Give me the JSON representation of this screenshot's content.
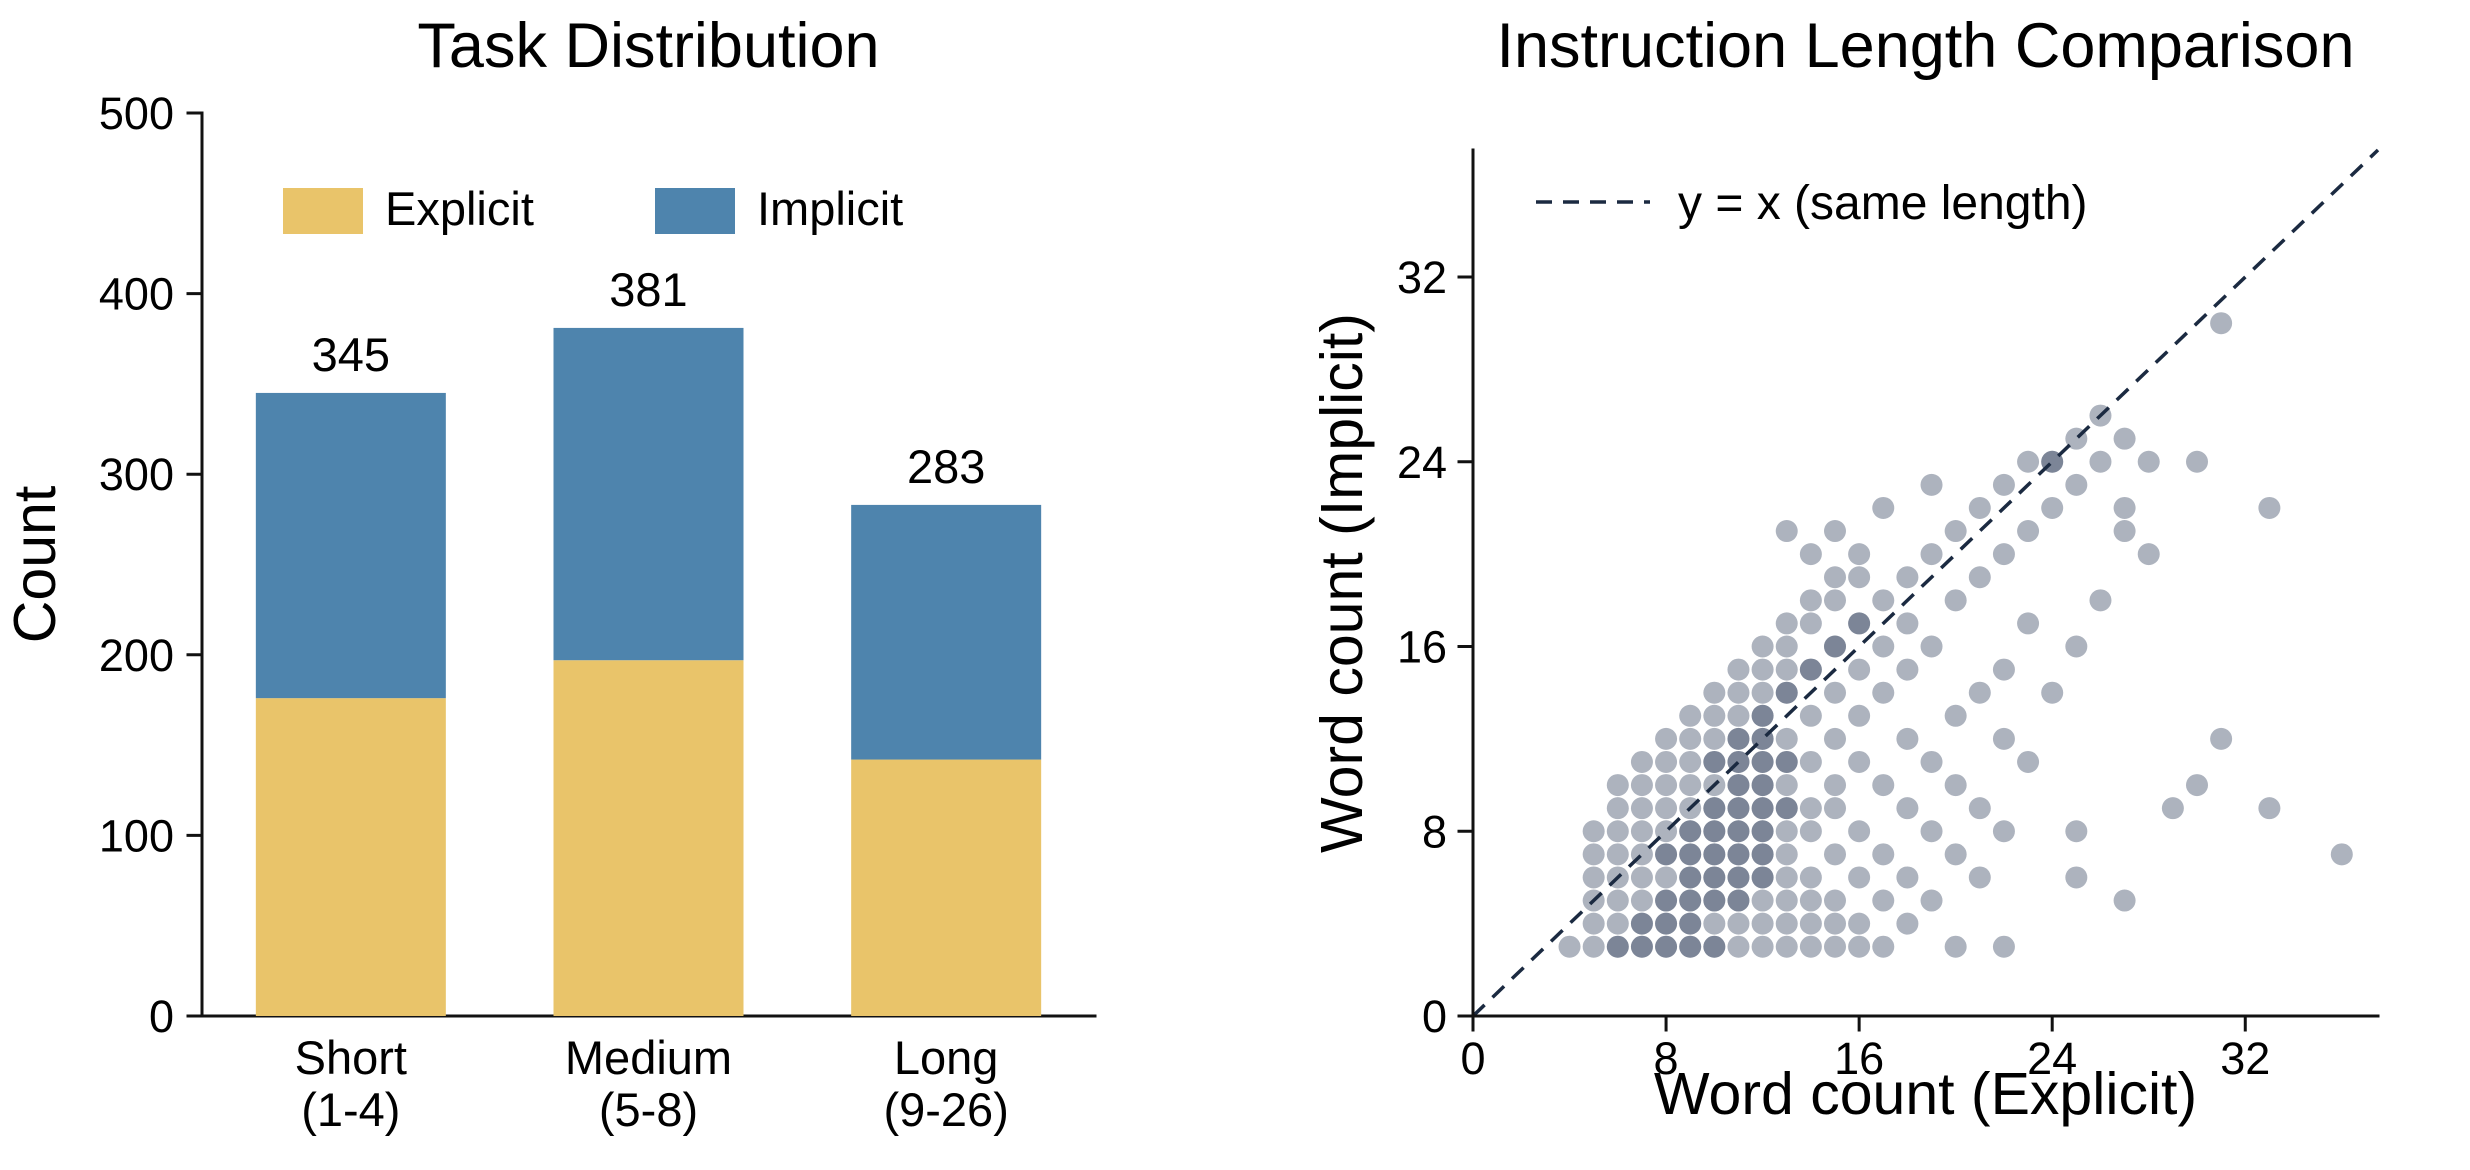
{
  "figure": {
    "background": "#ffffff"
  },
  "chart_data": [
    {
      "type": "bar",
      "stacked": true,
      "title": "Task Distribution",
      "ylabel": "Count",
      "ylim": [
        0,
        500
      ],
      "yticks": [
        0,
        100,
        200,
        300,
        400,
        500
      ],
      "categories": [
        [
          "Short",
          "(1-4)"
        ],
        [
          "Medium",
          "(5-8)"
        ],
        [
          "Long",
          "(9-26)"
        ]
      ],
      "series": [
        {
          "name": "Explicit",
          "color": "#e9c46a",
          "values": [
            176,
            197,
            142
          ]
        },
        {
          "name": "Implicit",
          "color": "#4e84ad",
          "values": [
            169,
            184,
            141
          ]
        }
      ],
      "totals": [
        345,
        381,
        283
      ],
      "legend": [
        "Explicit",
        "Implicit"
      ],
      "legend_position": "upper-inside",
      "grid": false
    },
    {
      "type": "scatter",
      "title": "Instruction Length Comparison",
      "xlabel": "Word count (Explicit)",
      "ylabel": "Word count (Implicit)",
      "xlim": [
        0,
        37.5
      ],
      "ylim": [
        0,
        37.5
      ],
      "xticks": [
        0,
        8,
        16,
        24,
        32
      ],
      "yticks": [
        0,
        8,
        16,
        24,
        32
      ],
      "grid": false,
      "point_color": "#33415c",
      "point_opacity": 0.4,
      "point_radius_px": 11,
      "reference_line": {
        "label": "y = x (same length)",
        "from": [
          0,
          0
        ],
        "to": [
          37.5,
          37.5
        ],
        "style": "dashed",
        "color": "#1b2a41"
      },
      "points": [
        [
          4,
          3
        ],
        [
          5,
          3
        ],
        [
          6,
          3
        ],
        [
          6,
          3
        ],
        [
          7,
          3
        ],
        [
          7,
          3
        ],
        [
          8,
          3
        ],
        [
          8,
          3
        ],
        [
          9,
          3
        ],
        [
          9,
          3
        ],
        [
          10,
          3
        ],
        [
          10,
          3
        ],
        [
          11,
          3
        ],
        [
          12,
          3
        ],
        [
          13,
          3
        ],
        [
          14,
          3
        ],
        [
          15,
          3
        ],
        [
          16,
          3
        ],
        [
          17,
          3
        ],
        [
          20,
          3
        ],
        [
          22,
          3
        ],
        [
          5,
          4
        ],
        [
          6,
          4
        ],
        [
          7,
          4
        ],
        [
          7,
          4
        ],
        [
          8,
          4
        ],
        [
          8,
          4
        ],
        [
          9,
          4
        ],
        [
          9,
          4
        ],
        [
          10,
          4
        ],
        [
          11,
          4
        ],
        [
          12,
          4
        ],
        [
          13,
          4
        ],
        [
          14,
          4
        ],
        [
          15,
          4
        ],
        [
          16,
          4
        ],
        [
          18,
          4
        ],
        [
          5,
          5
        ],
        [
          6,
          5
        ],
        [
          7,
          5
        ],
        [
          8,
          5
        ],
        [
          8,
          5
        ],
        [
          9,
          5
        ],
        [
          9,
          5
        ],
        [
          10,
          5
        ],
        [
          10,
          5
        ],
        [
          11,
          5
        ],
        [
          11,
          5
        ],
        [
          12,
          5
        ],
        [
          13,
          5
        ],
        [
          14,
          5
        ],
        [
          15,
          5
        ],
        [
          17,
          5
        ],
        [
          19,
          5
        ],
        [
          27,
          5
        ],
        [
          5,
          6
        ],
        [
          6,
          6
        ],
        [
          7,
          6
        ],
        [
          8,
          6
        ],
        [
          9,
          6
        ],
        [
          9,
          6
        ],
        [
          10,
          6
        ],
        [
          10,
          6
        ],
        [
          11,
          6
        ],
        [
          11,
          6
        ],
        [
          12,
          6
        ],
        [
          12,
          6
        ],
        [
          13,
          6
        ],
        [
          14,
          6
        ],
        [
          16,
          6
        ],
        [
          18,
          6
        ],
        [
          21,
          6
        ],
        [
          25,
          6
        ],
        [
          5,
          7
        ],
        [
          6,
          7
        ],
        [
          7,
          7
        ],
        [
          8,
          7
        ],
        [
          8,
          7
        ],
        [
          9,
          7
        ],
        [
          9,
          7
        ],
        [
          10,
          7
        ],
        [
          10,
          7
        ],
        [
          11,
          7
        ],
        [
          11,
          7
        ],
        [
          12,
          7
        ],
        [
          12,
          7
        ],
        [
          13,
          7
        ],
        [
          15,
          7
        ],
        [
          17,
          7
        ],
        [
          20,
          7
        ],
        [
          36,
          7
        ],
        [
          5,
          8
        ],
        [
          6,
          8
        ],
        [
          7,
          8
        ],
        [
          8,
          8
        ],
        [
          9,
          8
        ],
        [
          9,
          8
        ],
        [
          10,
          8
        ],
        [
          10,
          8
        ],
        [
          11,
          8
        ],
        [
          11,
          8
        ],
        [
          12,
          8
        ],
        [
          12,
          8
        ],
        [
          13,
          8
        ],
        [
          14,
          8
        ],
        [
          16,
          8
        ],
        [
          19,
          8
        ],
        [
          22,
          8
        ],
        [
          25,
          8
        ],
        [
          6,
          9
        ],
        [
          7,
          9
        ],
        [
          8,
          9
        ],
        [
          9,
          9
        ],
        [
          10,
          9
        ],
        [
          10,
          9
        ],
        [
          11,
          9
        ],
        [
          11,
          9
        ],
        [
          12,
          9
        ],
        [
          12,
          9
        ],
        [
          13,
          9
        ],
        [
          13,
          9
        ],
        [
          14,
          9
        ],
        [
          15,
          9
        ],
        [
          18,
          9
        ],
        [
          21,
          9
        ],
        [
          29,
          9
        ],
        [
          33,
          9
        ],
        [
          6,
          10
        ],
        [
          7,
          10
        ],
        [
          8,
          10
        ],
        [
          9,
          10
        ],
        [
          10,
          10
        ],
        [
          11,
          10
        ],
        [
          11,
          10
        ],
        [
          12,
          10
        ],
        [
          12,
          10
        ],
        [
          13,
          10
        ],
        [
          15,
          10
        ],
        [
          17,
          10
        ],
        [
          20,
          10
        ],
        [
          30,
          10
        ],
        [
          7,
          11
        ],
        [
          8,
          11
        ],
        [
          9,
          11
        ],
        [
          10,
          11
        ],
        [
          10,
          11
        ],
        [
          11,
          11
        ],
        [
          11,
          11
        ],
        [
          12,
          11
        ],
        [
          12,
          11
        ],
        [
          13,
          11
        ],
        [
          13,
          11
        ],
        [
          14,
          11
        ],
        [
          16,
          11
        ],
        [
          19,
          11
        ],
        [
          23,
          11
        ],
        [
          8,
          12
        ],
        [
          9,
          12
        ],
        [
          10,
          12
        ],
        [
          11,
          12
        ],
        [
          11,
          12
        ],
        [
          12,
          12
        ],
        [
          12,
          12
        ],
        [
          13,
          12
        ],
        [
          15,
          12
        ],
        [
          18,
          12
        ],
        [
          22,
          12
        ],
        [
          31,
          12
        ],
        [
          9,
          13
        ],
        [
          10,
          13
        ],
        [
          11,
          13
        ],
        [
          12,
          13
        ],
        [
          12,
          13
        ],
        [
          14,
          13
        ],
        [
          16,
          13
        ],
        [
          20,
          13
        ],
        [
          10,
          14
        ],
        [
          11,
          14
        ],
        [
          12,
          14
        ],
        [
          13,
          14
        ],
        [
          13,
          14
        ],
        [
          15,
          14
        ],
        [
          17,
          14
        ],
        [
          21,
          14
        ],
        [
          24,
          14
        ],
        [
          11,
          15
        ],
        [
          12,
          15
        ],
        [
          13,
          15
        ],
        [
          14,
          15
        ],
        [
          14,
          15
        ],
        [
          16,
          15
        ],
        [
          18,
          15
        ],
        [
          22,
          15
        ],
        [
          12,
          16
        ],
        [
          13,
          16
        ],
        [
          15,
          16
        ],
        [
          15,
          16
        ],
        [
          17,
          16
        ],
        [
          19,
          16
        ],
        [
          25,
          16
        ],
        [
          13,
          17
        ],
        [
          14,
          17
        ],
        [
          16,
          17
        ],
        [
          16,
          17
        ],
        [
          18,
          17
        ],
        [
          23,
          17
        ],
        [
          14,
          18
        ],
        [
          15,
          18
        ],
        [
          17,
          18
        ],
        [
          20,
          18
        ],
        [
          26,
          18
        ],
        [
          15,
          19
        ],
        [
          16,
          19
        ],
        [
          18,
          19
        ],
        [
          21,
          19
        ],
        [
          14,
          20
        ],
        [
          16,
          20
        ],
        [
          19,
          20
        ],
        [
          22,
          20
        ],
        [
          28,
          20
        ],
        [
          13,
          21
        ],
        [
          15,
          21
        ],
        [
          20,
          21
        ],
        [
          23,
          21
        ],
        [
          27,
          21
        ],
        [
          17,
          22
        ],
        [
          21,
          22
        ],
        [
          24,
          22
        ],
        [
          27,
          22
        ],
        [
          33,
          22
        ],
        [
          19,
          23
        ],
        [
          22,
          23
        ],
        [
          25,
          23
        ],
        [
          23,
          24
        ],
        [
          24,
          24
        ],
        [
          24,
          24
        ],
        [
          26,
          24
        ],
        [
          28,
          24
        ],
        [
          30,
          24
        ],
        [
          25,
          25
        ],
        [
          27,
          25
        ],
        [
          26,
          26
        ],
        [
          31,
          30
        ]
      ]
    }
  ]
}
